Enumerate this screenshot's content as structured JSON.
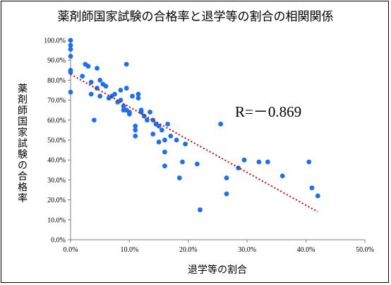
{
  "chart_data": {
    "type": "scatter",
    "title": "薬剤師国家試験の合格率と退学等の割合の相関関係",
    "xlabel": "退学等の割合",
    "ylabel": "薬剤師国家試験の合格率",
    "xlim": [
      0,
      0.5
    ],
    "ylim": [
      0,
      1.0
    ],
    "x_ticks": [
      "0.0%",
      "10.0%",
      "20.0%",
      "30.0%",
      "40.0%",
      "50.0%"
    ],
    "y_ticks": [
      "0.0%",
      "10.0%",
      "20.0%",
      "30.0%",
      "40.0%",
      "50.0%",
      "60.0%",
      "70.0%",
      "80.0%",
      "90.0%",
      "100.0%"
    ],
    "annotation": "R=－0.869",
    "marker_color": "#1f6fe8",
    "trendline_color": "#cc0000",
    "trendline": {
      "x": [
        0,
        0.42
      ],
      "y": [
        0.83,
        0.14
      ]
    },
    "points": [
      [
        0.0,
        1.0
      ],
      [
        0.0,
        0.975
      ],
      [
        0.0,
        0.955
      ],
      [
        0.0,
        0.92
      ],
      [
        0.0,
        0.85
      ],
      [
        0.0,
        0.84
      ],
      [
        0.0,
        0.74
      ],
      [
        0.02,
        0.82
      ],
      [
        0.025,
        0.88
      ],
      [
        0.03,
        0.87
      ],
      [
        0.035,
        0.73
      ],
      [
        0.035,
        0.79
      ],
      [
        0.04,
        0.6
      ],
      [
        0.045,
        0.86
      ],
      [
        0.045,
        0.76
      ],
      [
        0.05,
        0.72
      ],
      [
        0.05,
        0.8
      ],
      [
        0.055,
        0.78
      ],
      [
        0.06,
        0.77
      ],
      [
        0.065,
        0.71
      ],
      [
        0.07,
        0.72
      ],
      [
        0.075,
        0.73
      ],
      [
        0.08,
        0.69
      ],
      [
        0.085,
        0.7
      ],
      [
        0.085,
        0.75
      ],
      [
        0.09,
        0.67
      ],
      [
        0.09,
        0.65
      ],
      [
        0.095,
        0.88
      ],
      [
        0.095,
        0.76
      ],
      [
        0.095,
        0.65
      ],
      [
        0.1,
        0.64
      ],
      [
        0.1,
        0.63
      ],
      [
        0.105,
        0.72
      ],
      [
        0.11,
        0.57
      ],
      [
        0.11,
        0.55
      ],
      [
        0.11,
        0.52
      ],
      [
        0.115,
        0.71
      ],
      [
        0.115,
        0.73
      ],
      [
        0.12,
        0.65
      ],
      [
        0.12,
        0.64
      ],
      [
        0.125,
        0.62
      ],
      [
        0.13,
        0.6
      ],
      [
        0.135,
        0.64
      ],
      [
        0.14,
        0.53
      ],
      [
        0.14,
        0.6
      ],
      [
        0.145,
        0.58
      ],
      [
        0.15,
        0.57
      ],
      [
        0.15,
        0.49
      ],
      [
        0.155,
        0.55
      ],
      [
        0.16,
        0.5
      ],
      [
        0.16,
        0.44
      ],
      [
        0.16,
        0.37
      ],
      [
        0.165,
        0.58
      ],
      [
        0.17,
        0.52
      ],
      [
        0.18,
        0.5
      ],
      [
        0.185,
        0.31
      ],
      [
        0.19,
        0.39
      ],
      [
        0.195,
        0.48
      ],
      [
        0.215,
        0.38
      ],
      [
        0.22,
        0.15
      ],
      [
        0.255,
        0.58
      ],
      [
        0.265,
        0.31
      ],
      [
        0.265,
        0.23
      ],
      [
        0.285,
        0.36
      ],
      [
        0.295,
        0.4
      ],
      [
        0.32,
        0.39
      ],
      [
        0.335,
        0.39
      ],
      [
        0.36,
        0.32
      ],
      [
        0.405,
        0.39
      ],
      [
        0.41,
        0.26
      ],
      [
        0.42,
        0.22
      ]
    ]
  }
}
